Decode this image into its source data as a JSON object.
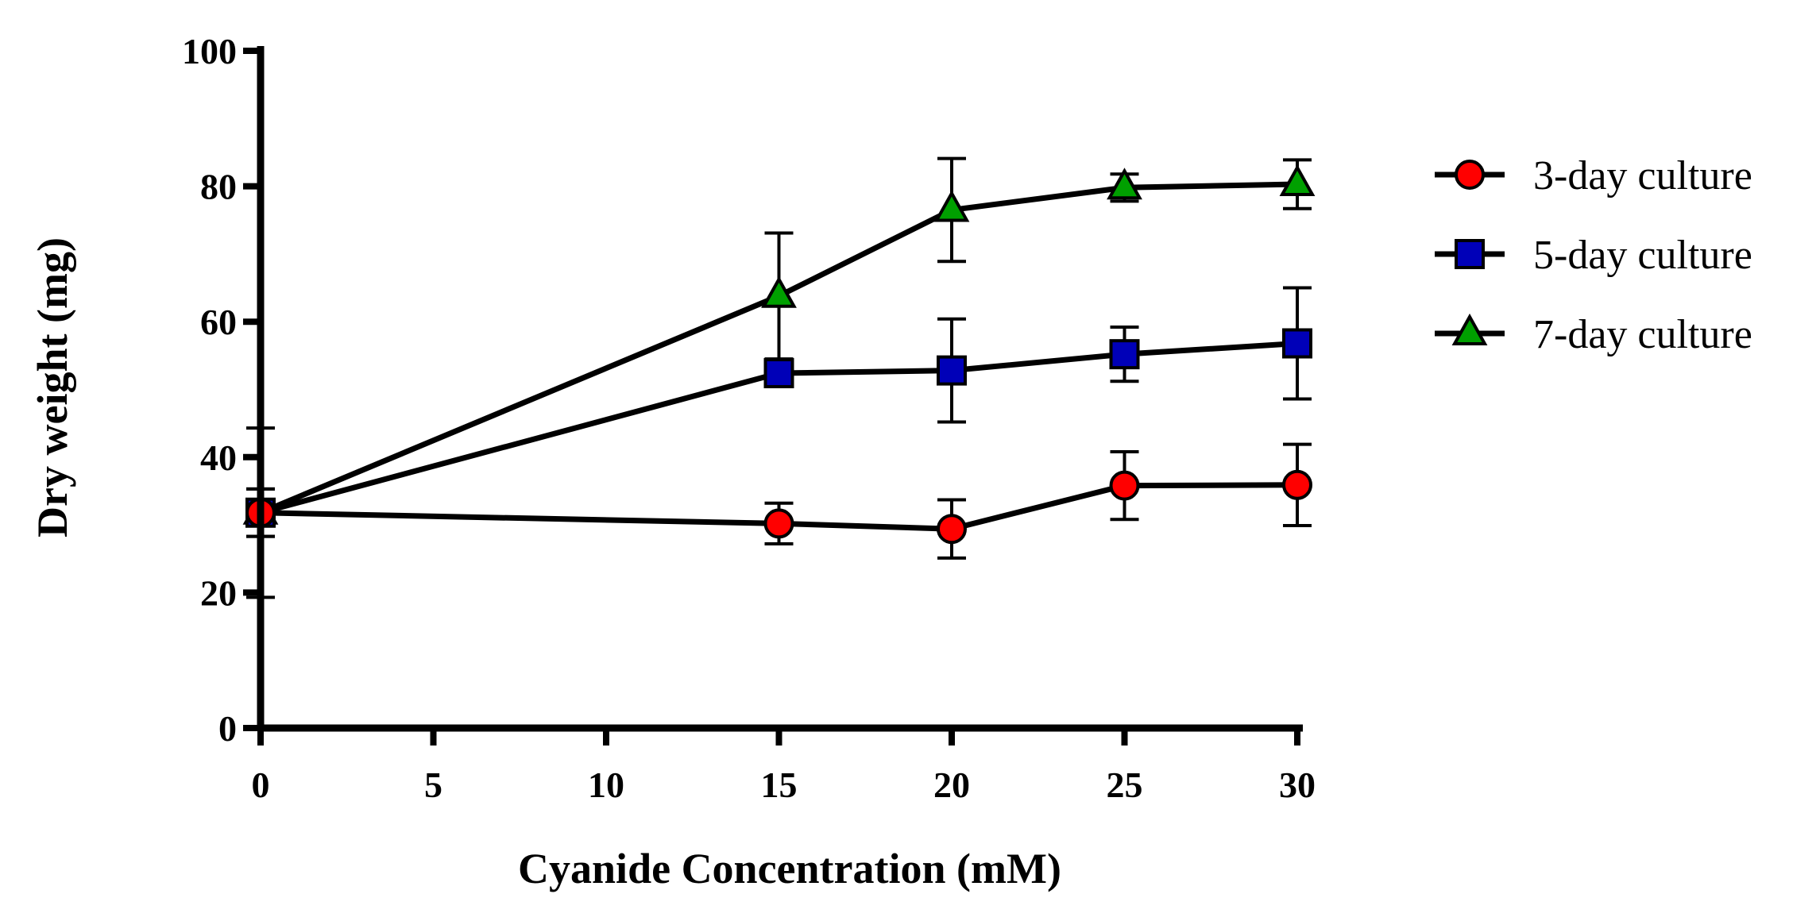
{
  "chart_data": {
    "type": "line",
    "xlabel": "Cyanide Concentration (mM)",
    "ylabel": "Dry weight (mg)",
    "xlim": [
      0,
      30
    ],
    "ylim": [
      0,
      100
    ],
    "xticks": [
      0,
      5,
      10,
      15,
      20,
      25,
      30
    ],
    "yticks": [
      0,
      20,
      40,
      60,
      80,
      100
    ],
    "x_tick_labels": [
      "0",
      "5",
      "10",
      "15",
      "20",
      "25",
      "30"
    ],
    "y_tick_labels": [
      "0",
      "20",
      "40",
      "60",
      "80",
      "100"
    ],
    "legend_position": "right",
    "series": [
      {
        "name": "3-day culture",
        "marker": "circle",
        "color": "#ff0000",
        "x": [
          0,
          15,
          20,
          25,
          30
        ],
        "values": [
          31.8,
          30.2,
          29.4,
          35.8,
          35.9
        ],
        "errors": [
          3.5,
          3.0,
          4.3,
          5.0,
          6.0
        ]
      },
      {
        "name": "5-day culture",
        "marker": "square",
        "color": "#0000b8",
        "x": [
          0,
          15,
          20,
          25,
          30
        ],
        "values": [
          31.8,
          52.4,
          52.8,
          55.2,
          56.8
        ],
        "errors": [
          3.5,
          0.0,
          7.6,
          4.0,
          8.2
        ]
      },
      {
        "name": "7-day culture",
        "marker": "triangle",
        "color": "#00a000",
        "x": [
          0,
          15,
          20,
          25,
          30
        ],
        "values": [
          31.8,
          63.8,
          76.5,
          79.8,
          80.3
        ],
        "errors": [
          12.5,
          9.3,
          7.6,
          2.0,
          3.6
        ]
      }
    ]
  }
}
